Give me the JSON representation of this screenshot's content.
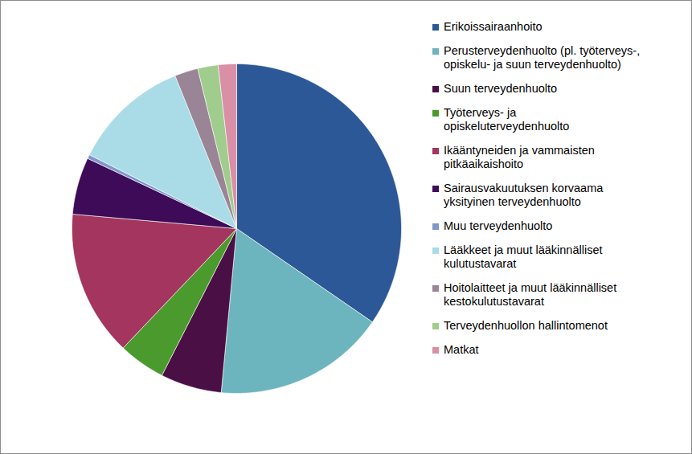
{
  "chart_data": {
    "type": "pie",
    "categories": [
      "Erikoissairaanhoito",
      "Perusterveydenhuolto (pl. työterveys-,\nopiskelu- ja suun terveydenhuolto)",
      "Suun terveydenhuolto",
      "Työterveys- ja\nopiskeluterveydenhuolto",
      " Ikääntyneiden ja vammaisten\npitkäaikaishoito",
      "Sairausvakuutuksen korvaama\nyksityinen terveydenhuolto",
      "Muu terveydenhuolto",
      "Lääkkeet ja muut lääkinnälliset\nkulutustavarat",
      "Hoitolaitteet ja muut lääkinnälliset\nkestokulutustavarat",
      "Terveydenhuollon hallintomenot",
      "Matkat"
    ],
    "values": [
      34.6,
      16.9,
      6.0,
      4.6,
      14.3,
      5.6,
      0.4,
      11.5,
      2.3,
      2.0,
      1.8
    ],
    "colors": [
      "#2c5897",
      "#6cb5be",
      "#4a0f45",
      "#4b9a2d",
      "#a3355e",
      "#3d0b58",
      "#8197c9",
      "#a9dce6",
      "#998596",
      "#a0cc8d",
      "#d98fa5"
    ],
    "legend": "right"
  }
}
